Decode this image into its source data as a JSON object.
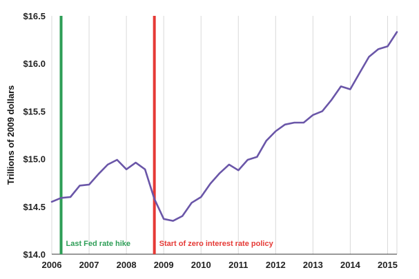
{
  "chart_data": {
    "type": "line",
    "title": "",
    "xlabel": "",
    "ylabel": "Trillions of 2009 dollars",
    "xlim": [
      2006,
      2015.25
    ],
    "ylim": [
      14.0,
      16.5
    ],
    "x_ticks": [
      2006,
      2007,
      2008,
      2009,
      2010,
      2011,
      2012,
      2013,
      2014,
      2015
    ],
    "x_tick_labels": [
      "2006",
      "2007",
      "2008",
      "2009",
      "2010",
      "2011",
      "2012",
      "2013",
      "2014",
      "2015"
    ],
    "y_ticks": [
      14.0,
      14.5,
      15.0,
      15.5,
      16.0,
      16.5
    ],
    "y_tick_labels": [
      "$14.0",
      "$14.5",
      "$15.0",
      "$15.5",
      "$16.0",
      "$16.5"
    ],
    "grid": "vertical lines at each year",
    "line_color": "#6a56a8",
    "series": [
      {
        "x": [
          2006.0,
          2006.25,
          2006.5,
          2006.75,
          2007.0,
          2007.25,
          2007.5,
          2007.75,
          2008.0,
          2008.25,
          2008.5,
          2008.75,
          2009.0,
          2009.25,
          2009.5,
          2009.75,
          2010.0,
          2010.25,
          2010.5,
          2010.75,
          2011.0,
          2011.25,
          2011.5,
          2011.75,
          2012.0,
          2012.25,
          2012.5,
          2012.75,
          2013.0,
          2013.25,
          2013.5,
          2013.75,
          2014.0,
          2014.25,
          2014.5,
          2014.75,
          2015.0,
          2015.25
        ],
        "y": [
          14.55,
          14.59,
          14.6,
          14.72,
          14.73,
          14.84,
          14.94,
          14.99,
          14.89,
          14.96,
          14.89,
          14.58,
          14.37,
          14.35,
          14.4,
          14.54,
          14.6,
          14.74,
          14.85,
          14.94,
          14.88,
          14.99,
          15.02,
          15.19,
          15.29,
          15.36,
          15.38,
          15.38,
          15.46,
          15.5,
          15.62,
          15.76,
          15.73,
          15.9,
          16.07,
          16.15,
          16.18,
          16.33
        ]
      }
    ],
    "annotations": [
      {
        "x": 2006.25,
        "label": "Last Fed rate hike",
        "color": "#2e9e57"
      },
      {
        "x": 2008.75,
        "label": "Start of zero interest rate policy",
        "color": "#e53935"
      }
    ]
  }
}
